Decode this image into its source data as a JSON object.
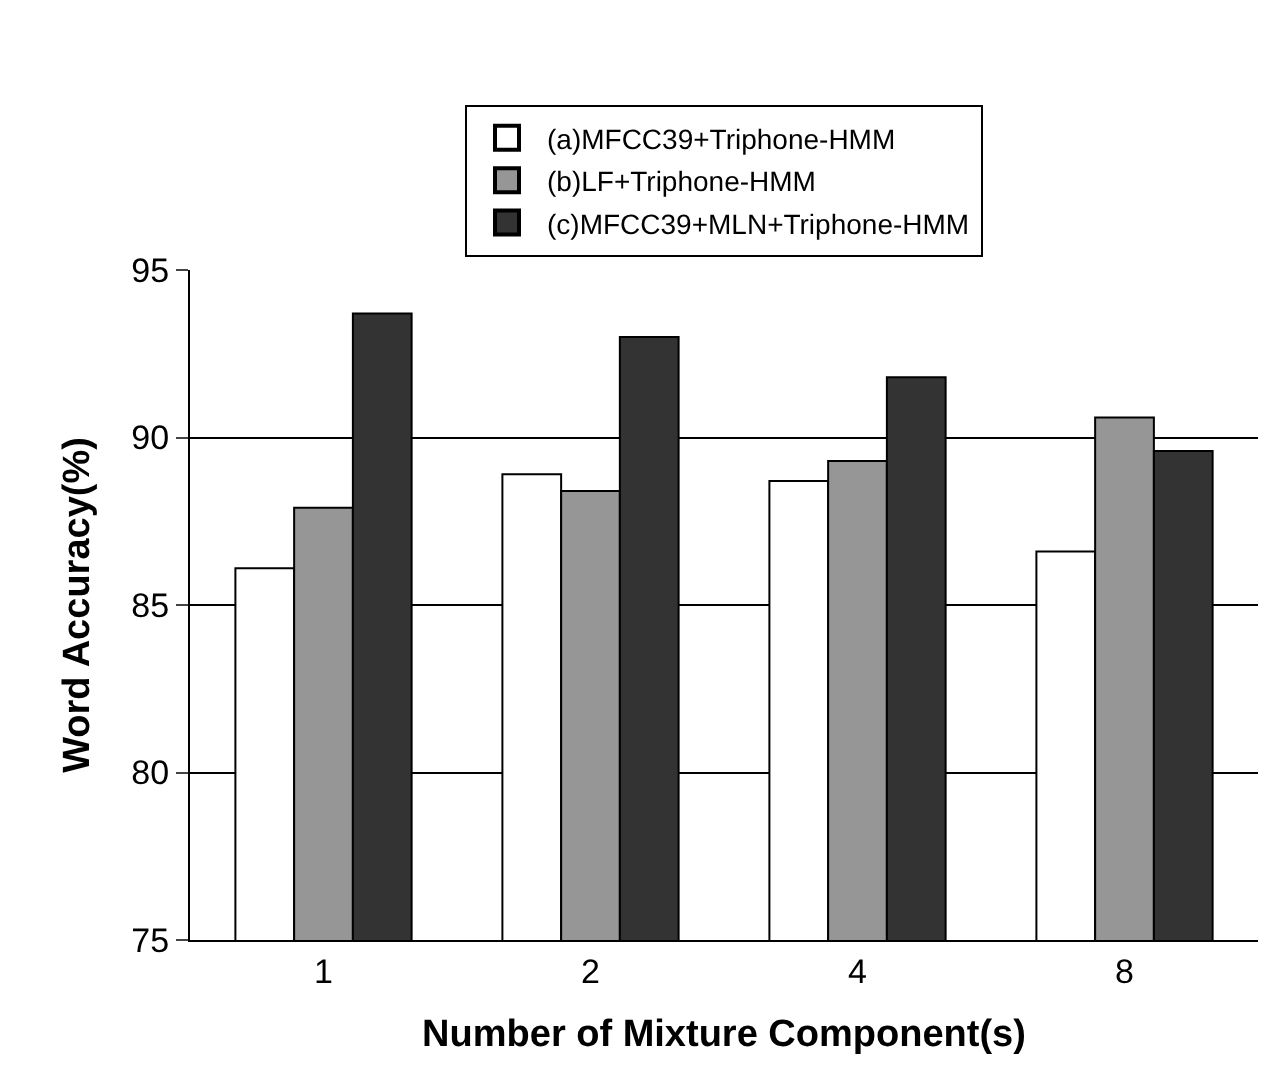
{
  "chart_data": {
    "type": "bar",
    "xlabel": "Number of Mixture Component(s)",
    "ylabel": "Word Accuracy(%)",
    "categories": [
      "1",
      "2",
      "4",
      "8"
    ],
    "series": [
      {
        "name": "(a)MFCC39+Triphone-HMM",
        "color": "#ffffff",
        "values": [
          86.1,
          88.9,
          88.7,
          86.6
        ]
      },
      {
        "name": "(b)LF+Triphone-HMM",
        "color": "#969696",
        "values": [
          87.9,
          88.4,
          89.3,
          90.6
        ]
      },
      {
        "name": "(c)MFCC39+MLN+Triphone-HMM",
        "color": "#333333",
        "values": [
          93.7,
          93.0,
          91.8,
          89.6
        ]
      }
    ],
    "ylim": [
      75,
      95
    ],
    "yticks": [
      75,
      80,
      85,
      90,
      95
    ],
    "grid": "y",
    "legend": "top"
  }
}
